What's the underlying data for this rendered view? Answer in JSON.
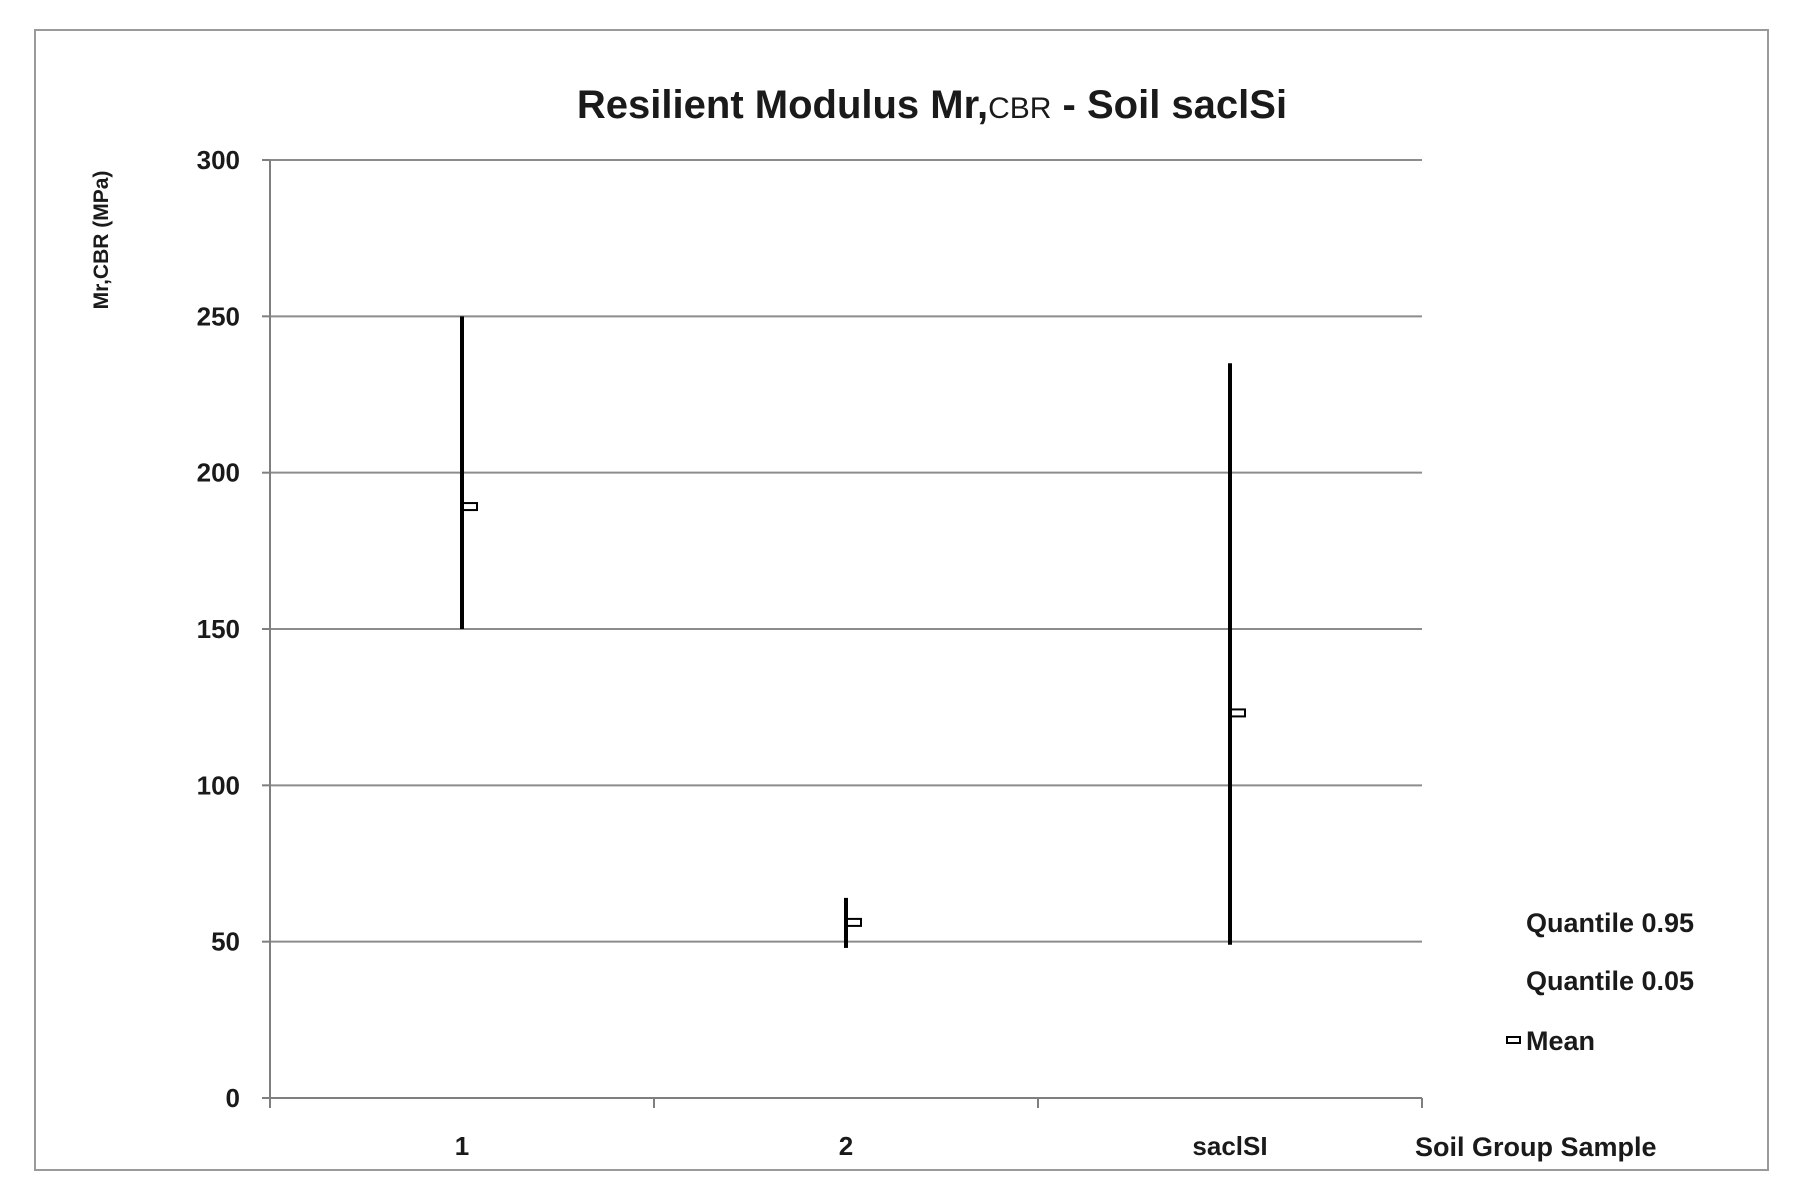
{
  "chart_data": {
    "type": "errorbar",
    "title_main": "Resilient Modulus Mr,",
    "title_sub": "CBR",
    "title_tail": " - Soil saclSi",
    "ylabel": "Mr,CBR (MPa)",
    "xlabel": "Soil  Group Sample",
    "ylim": [
      0,
      300
    ],
    "yticks": [
      0,
      50,
      100,
      150,
      200,
      250,
      300
    ],
    "grid": true,
    "categories": [
      "1",
      "2",
      "saclSI"
    ],
    "series": [
      {
        "name": "Quantile 0.95",
        "values": [
          250,
          64,
          235
        ]
      },
      {
        "name": "Quantile 0.05",
        "values": [
          150,
          48,
          49
        ]
      },
      {
        "name": "Mean",
        "values": [
          189,
          56,
          123
        ]
      }
    ],
    "legend_position": "right",
    "colors": {
      "line": "#000000",
      "grid": "#8c8c8c",
      "axis": "#7f7f7f",
      "marker_fill": "#ffffff"
    }
  }
}
